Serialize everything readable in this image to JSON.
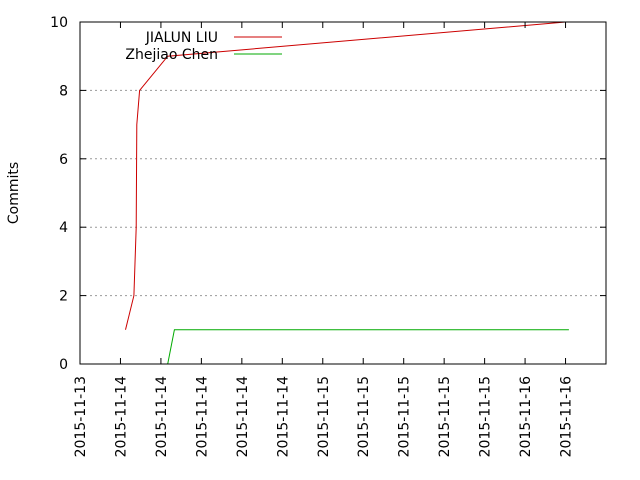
{
  "chart_data": {
    "type": "line",
    "title": "",
    "xlabel": "",
    "ylabel": "Commits",
    "x_type": "date",
    "xlim": [
      "2015-11-13T00:00",
      "2015-11-16T06:00"
    ],
    "ylim": [
      0,
      10
    ],
    "x_tick_labels": [
      "2015-11-13",
      "2015-11-14",
      "2015-11-14",
      "2015-11-14",
      "2015-11-14",
      "2015-11-14",
      "2015-11-15",
      "2015-11-15",
      "2015-11-15",
      "2015-11-15",
      "2015-11-15",
      "2015-11-16",
      "2015-11-16"
    ],
    "y_ticks": [
      0,
      2,
      4,
      6,
      8,
      10
    ],
    "grid": "horizontal dotted",
    "legend_position": "top-left",
    "series": [
      {
        "name": "JIALUN LIU",
        "color": "#cc0000",
        "points": [
          {
            "x": "2015-11-13T06:45",
            "y": 1
          },
          {
            "x": "2015-11-13T08:00",
            "y": 2
          },
          {
            "x": "2015-11-13T08:20",
            "y": 4
          },
          {
            "x": "2015-11-13T08:25",
            "y": 7
          },
          {
            "x": "2015-11-13T08:50",
            "y": 8
          },
          {
            "x": "2015-11-13T13:00",
            "y": 9
          },
          {
            "x": "2015-11-16T00:00",
            "y": 10
          }
        ]
      },
      {
        "name": "Zhejiao Chen",
        "color": "#00aa00",
        "points": [
          {
            "x": "2015-11-13T13:00",
            "y": 0
          },
          {
            "x": "2015-11-13T14:00",
            "y": 1
          },
          {
            "x": "2015-11-16T00:30",
            "y": 1
          }
        ]
      }
    ]
  }
}
